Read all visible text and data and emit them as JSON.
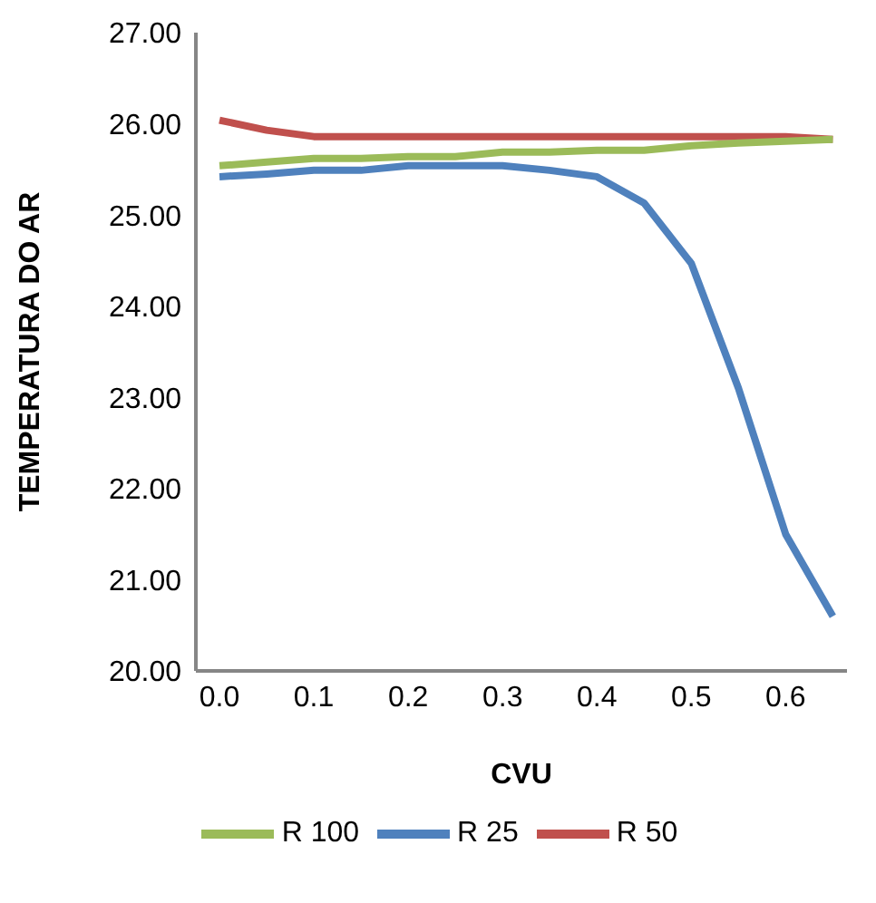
{
  "chart_data": {
    "type": "line",
    "xlabel": "CVU",
    "ylabel": "TEMPERATURA  DO AR",
    "x": [
      0,
      0.05,
      0.1,
      0.15,
      0.2,
      0.25,
      0.3,
      0.35,
      0.4,
      0.45,
      0.5,
      0.55,
      0.6,
      0.65
    ],
    "series": [
      {
        "name": "R 25",
        "color": "#4f81bd",
        "values": [
          25.42,
          25.45,
          25.49,
          25.49,
          25.54,
          25.54,
          25.54,
          25.49,
          25.42,
          25.13,
          24.47,
          23.1,
          21.5,
          20.6
        ]
      },
      {
        "name": "R 50",
        "color": "#c0504d",
        "values": [
          26.04,
          25.93,
          25.86,
          25.86,
          25.86,
          25.86,
          25.86,
          25.86,
          25.86,
          25.86,
          25.86,
          25.86,
          25.86,
          25.83
        ]
      },
      {
        "name": "R 100",
        "color": "#9bbb59",
        "values": [
          25.54,
          25.58,
          25.62,
          25.62,
          25.64,
          25.64,
          25.69,
          25.69,
          25.71,
          25.71,
          25.76,
          25.79,
          25.81,
          25.83
        ]
      }
    ],
    "xlim": [
      -0.025,
      0.665
    ],
    "xticks": [
      {
        "value": 0,
        "label": "0.0"
      },
      {
        "value": 0.1,
        "label": "0.1"
      },
      {
        "value": 0.2,
        "label": "0.2"
      },
      {
        "value": 0.3,
        "label": "0.3"
      },
      {
        "value": 0.4,
        "label": "0.4"
      },
      {
        "value": 0.5,
        "label": "0.5"
      },
      {
        "value": 0.6,
        "label": "0.6"
      }
    ],
    "ylim": [
      20,
      27
    ],
    "yticks": [
      {
        "value": 20,
        "label": "20.00"
      },
      {
        "value": 21,
        "label": "21.00"
      },
      {
        "value": 22,
        "label": "22.00"
      },
      {
        "value": 23,
        "label": "23.00"
      },
      {
        "value": 24,
        "label": "24.00"
      },
      {
        "value": 25,
        "label": "25.00"
      },
      {
        "value": 26,
        "label": "26.00"
      },
      {
        "value": 27,
        "label": "27.00"
      }
    ],
    "grid": false,
    "legend": "bottom",
    "marker": "none",
    "line_style": "solid"
  }
}
